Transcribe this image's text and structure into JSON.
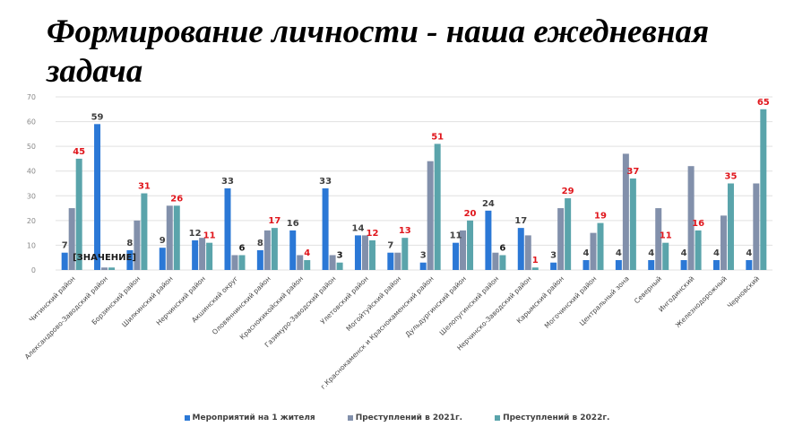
{
  "page": {
    "title": "Формирование личности - наша ежедневная задача"
  },
  "chart_data": {
    "type": "bar",
    "title": "Формирование личности - наша ежедневная задача",
    "xlabel": "",
    "ylabel": "",
    "ylim": [
      0,
      70
    ],
    "yticks": [
      0,
      10,
      20,
      30,
      40,
      50,
      60,
      70
    ],
    "grid": true,
    "legend_position": "bottom",
    "categories": [
      "Читинский район",
      "Александрово-Заводский район",
      "Борзинский район",
      "Шилкинский район",
      "Нерчинский район",
      "Акшинский округ",
      "Оловяннинский район",
      "Краснокикойский район",
      "Газимуро-Заводский район",
      "Улетовский район",
      "Могойтуйский район",
      "г.Краснокаменск и Краснокаменский район",
      "Дульдургинский район",
      "Шелопугинский район",
      "Нерчинско-Заводский район",
      "Карымский район",
      "Могочинский район",
      "Центральный зона",
      "Северный",
      "Ингодинский",
      "Железнодорожный",
      "Черновский"
    ],
    "series": [
      {
        "name": "Мероприятий на 1 жителя",
        "color": "#2b78d6",
        "values": [
          7,
          59,
          8,
          9,
          12,
          33,
          8,
          16,
          33,
          14,
          7,
          3,
          11,
          24,
          17,
          3,
          4,
          4,
          4,
          4,
          4,
          4
        ],
        "labels": [
          "7",
          "59",
          "8",
          "9",
          "12",
          "33",
          "8",
          "16",
          "33",
          "14",
          "7",
          "3",
          "11",
          "24",
          "17",
          "3",
          "4",
          "4",
          "4",
          "4",
          "4",
          "4"
        ]
      },
      {
        "name": "Преступлений в 2021г.",
        "color": "#8290ab",
        "values": [
          25,
          1,
          20,
          26,
          13,
          6,
          16,
          6,
          6,
          14,
          7,
          44,
          16,
          7,
          14,
          25,
          15,
          47,
          25,
          42,
          22,
          35
        ],
        "labels": []
      },
      {
        "name": "Преступлений в 2022г.",
        "color": "#5aa4ab",
        "values": [
          45,
          1,
          31,
          26,
          11,
          6,
          17,
          4,
          3,
          12,
          13,
          51,
          20,
          6,
          1,
          29,
          19,
          37,
          11,
          16,
          35,
          65
        ],
        "labels": [
          "45",
          "[ЗНАЧЕНИЕ]",
          "31",
          "26",
          "11",
          "6",
          "17",
          "4",
          "3",
          "12",
          "13",
          "51",
          "20",
          "6",
          "1",
          "29",
          "19",
          "37",
          "11",
          "16",
          "35",
          "65"
        ],
        "label_colors": [
          "#e0161c",
          "#1a1a1a",
          "#e0161c",
          "#e0161c",
          "#e0161c",
          "#1a1a1a",
          "#e0161c",
          "#e0161c",
          "#1a1a1a",
          "#e0161c",
          "#e0161c",
          "#e0161c",
          "#e0161c",
          "#1a1a1a",
          "#e0161c",
          "#e0161c",
          "#e0161c",
          "#e0161c",
          "#e0161c",
          "#e0161c",
          "#e0161c",
          "#e0161c"
        ]
      }
    ]
  }
}
